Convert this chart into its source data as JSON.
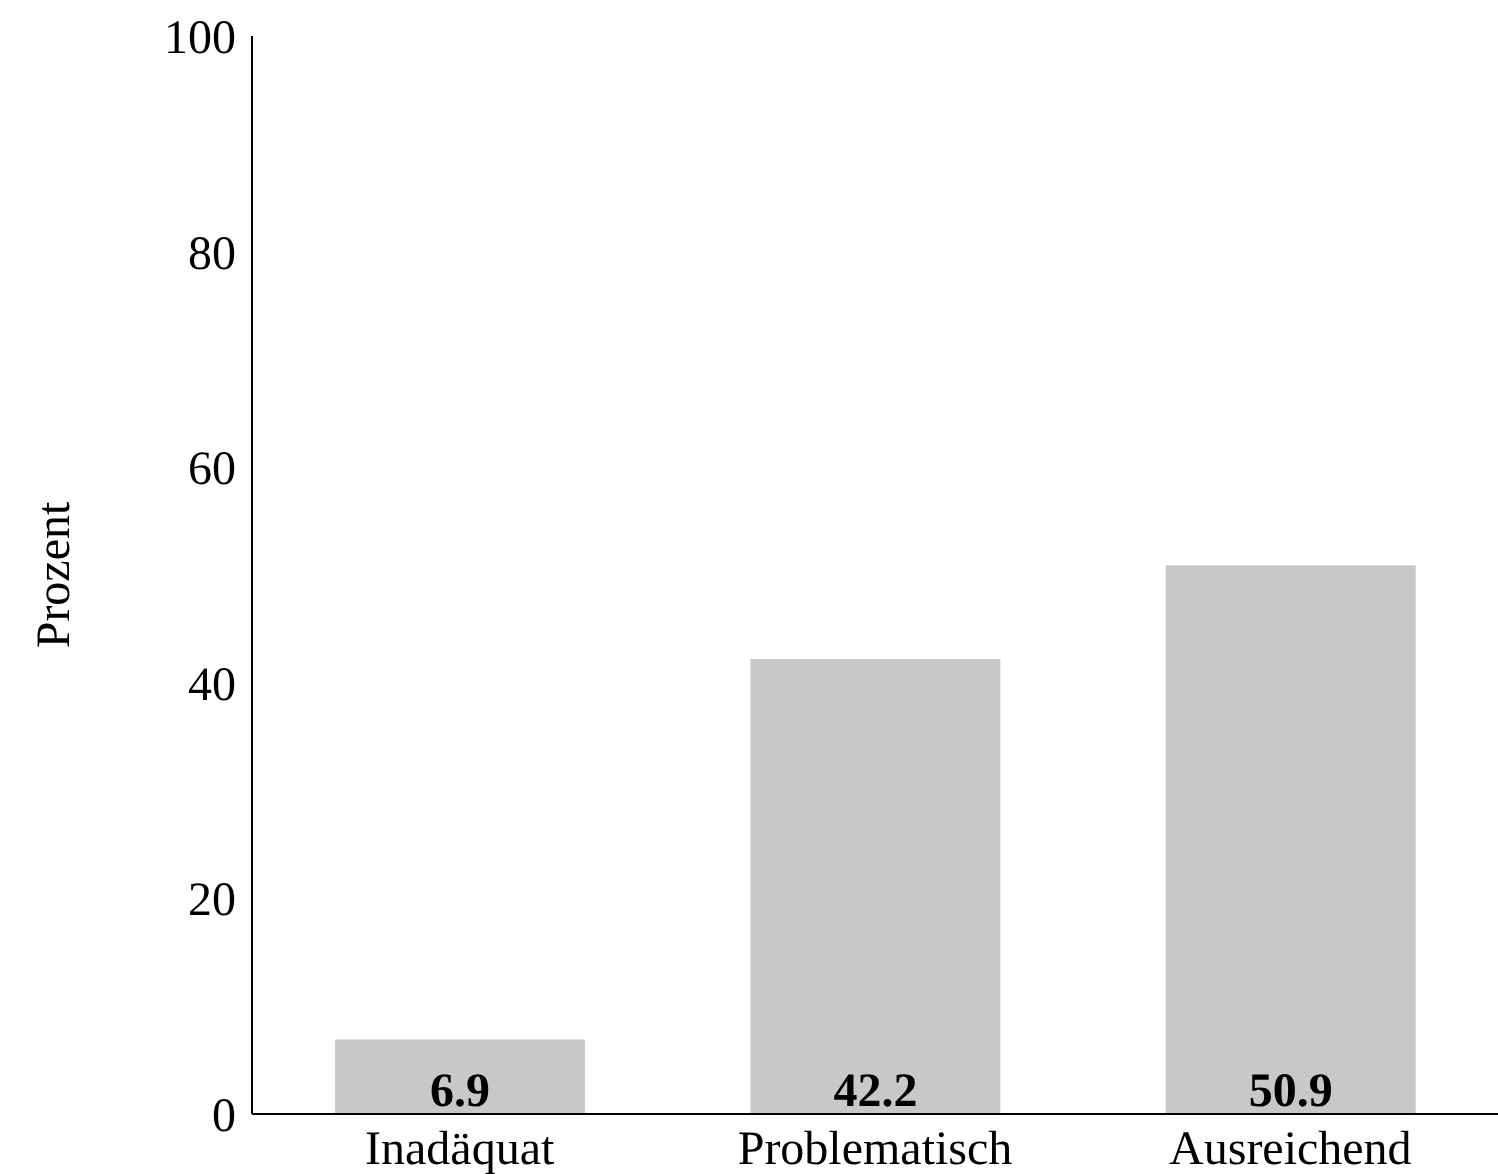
{
  "chart_data": {
    "type": "bar",
    "ylabel": "Prozent",
    "categories": [
      "Inadäquat",
      "Problematisch",
      "Ausreichend"
    ],
    "values": [
      6.9,
      42.2,
      50.9
    ],
    "color": "#c8c8c8",
    "ylim": [
      0,
      100
    ],
    "yticks": [
      0,
      20,
      40,
      60,
      80,
      100
    ],
    "grid": false,
    "legend": false,
    "data_labels": true
  }
}
